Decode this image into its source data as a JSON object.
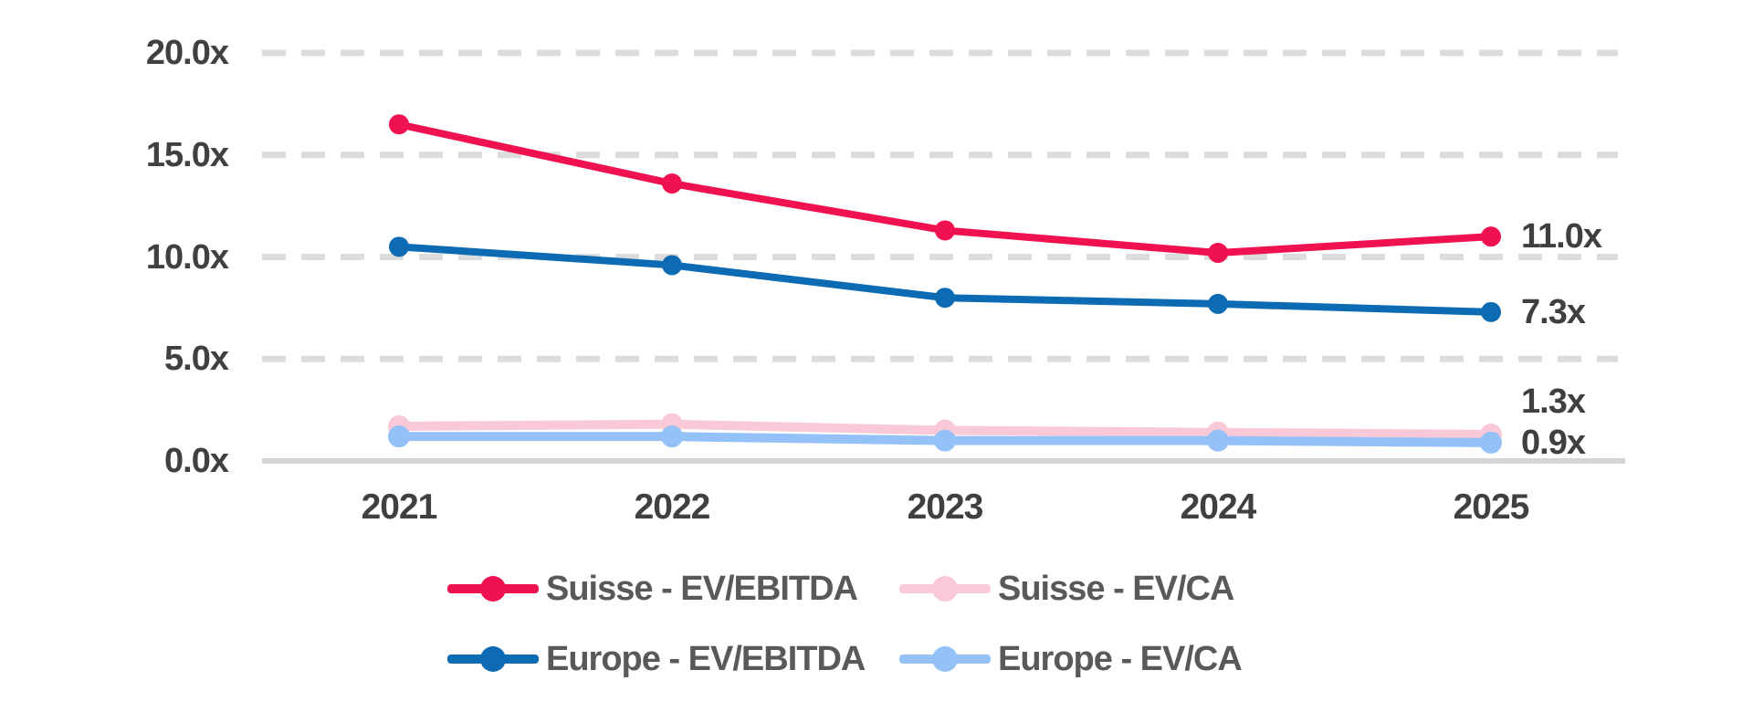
{
  "chart_data": {
    "type": "line",
    "x_labels": [
      "2021",
      "2022",
      "2023",
      "2024",
      "2025"
    ],
    "y_tick_labels": [
      "20.0x",
      "15.0x",
      "10.0x",
      "5.0x",
      "0.0x"
    ],
    "y_ticks": [
      20,
      15,
      10,
      5,
      0
    ],
    "ylim": [
      0,
      20
    ],
    "grid": "horizontal-dashed",
    "legend_position": "bottom",
    "series": [
      {
        "name": "Suisse - EV/EBITDA",
        "color": "#f01150",
        "values": [
          16.5,
          13.6,
          11.3,
          10.2,
          11.0
        ]
      },
      {
        "name": "Suisse - EV/CA",
        "color": "#f9c9d8",
        "values": [
          1.7,
          1.8,
          1.5,
          1.4,
          1.3
        ]
      },
      {
        "name": "Europe - EV/EBITDA",
        "color": "#0d6bb4",
        "values": [
          10.5,
          9.6,
          8.0,
          7.7,
          7.3
        ]
      },
      {
        "name": "Europe - EV/CA",
        "color": "#93c1f8",
        "values": [
          1.2,
          1.2,
          1.0,
          1.0,
          0.9
        ]
      }
    ],
    "end_labels": [
      {
        "text": "11.0x",
        "value": 11.0,
        "dy": 0
      },
      {
        "text": "7.3x",
        "value": 7.3,
        "dy": 0
      },
      {
        "text": "1.3x",
        "value": 1.3,
        "dy": -36
      },
      {
        "text": "0.9x",
        "value": 0.9,
        "dy": 0
      }
    ]
  },
  "legend": {
    "items": [
      {
        "label": "Suisse - EV/EBITDA",
        "color": "#f01150"
      },
      {
        "label": "Suisse - EV/CA",
        "color": "#f9c9d8"
      },
      {
        "label": "Europe - EV/EBITDA",
        "color": "#0d6bb4"
      },
      {
        "label": "Europe - EV/CA",
        "color": "#93c1f8"
      }
    ]
  },
  "colors": {
    "grid": "#dcdcdc",
    "axis": "#d4d4d4",
    "tick_text": "#404040",
    "end_label_text": "#3f3f3f",
    "legend_text": "#595959",
    "background": "#ffffff"
  }
}
